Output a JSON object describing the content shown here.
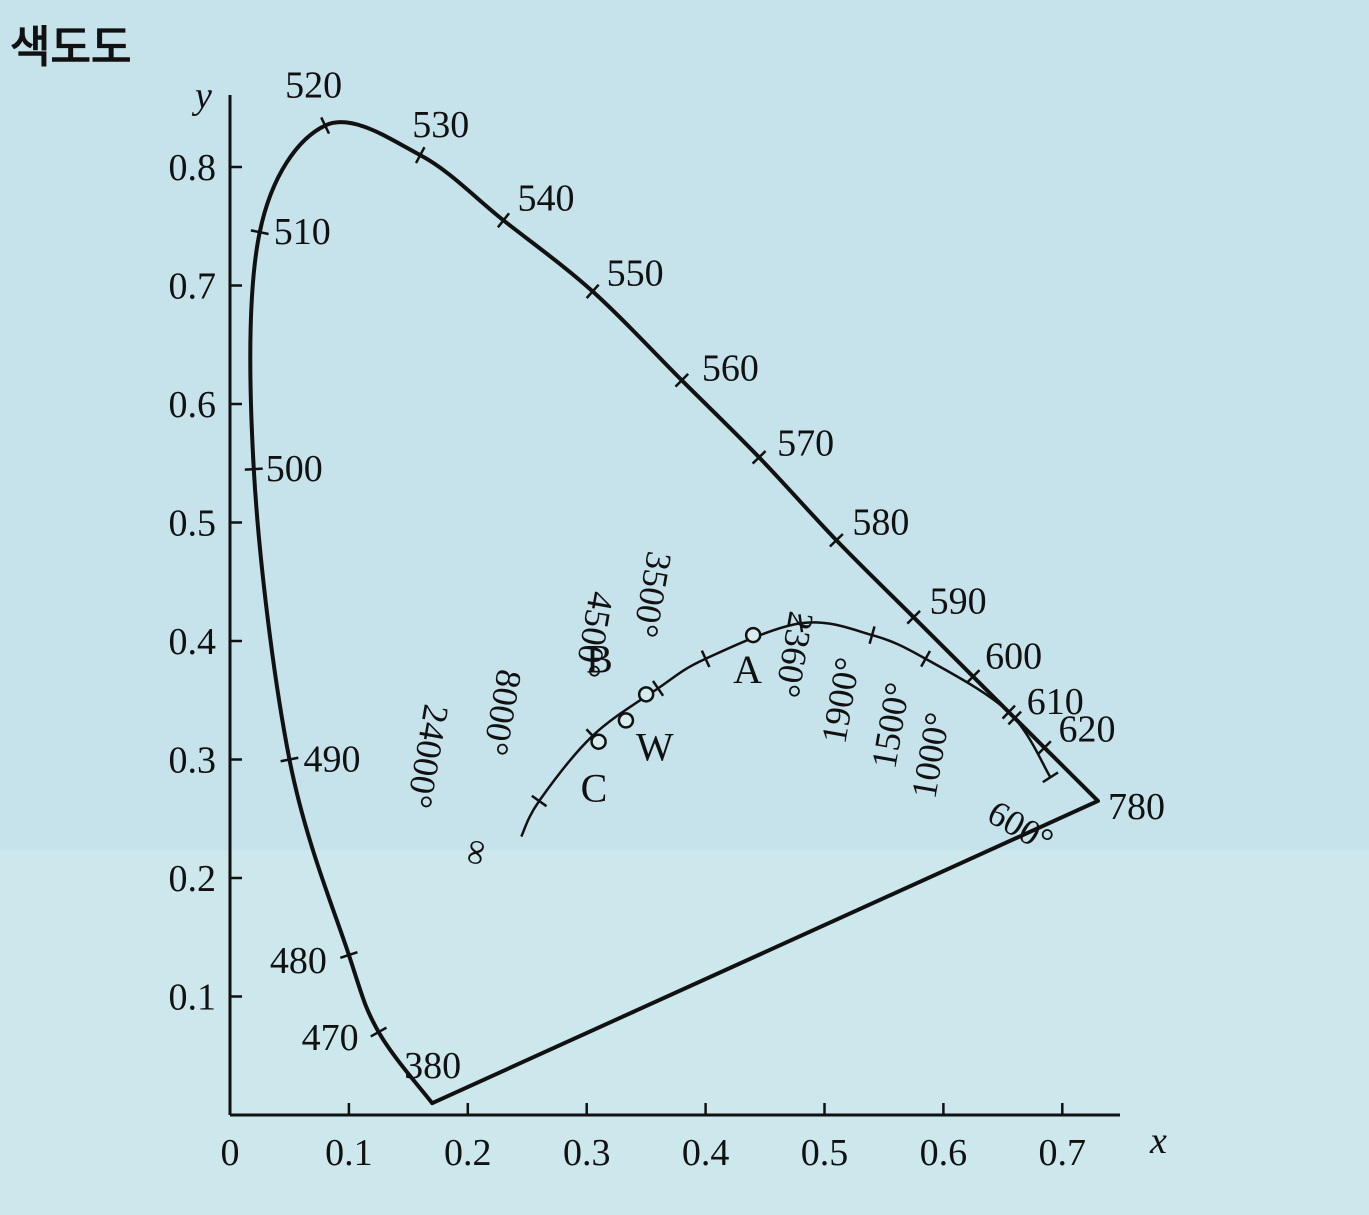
{
  "title": "색도도",
  "axes": {
    "xlabel": "x",
    "ylabel": "y",
    "xticks": [
      "0",
      "0.1",
      "0.2",
      "0.3",
      "0.4",
      "0.5",
      "0.6",
      "0.7"
    ],
    "yticks": [
      "0.1",
      "0.2",
      "0.3",
      "0.4",
      "0.5",
      "0.6",
      "0.7",
      "0.8"
    ],
    "xlim": [
      0,
      0.74
    ],
    "ylim": [
      0,
      0.85
    ]
  },
  "chart_data": {
    "type": "chromaticity-diagram",
    "spectral_locus": [
      {
        "nm": "380",
        "x": 0.17,
        "y": 0.01
      },
      {
        "nm": "470",
        "x": 0.125,
        "y": 0.07
      },
      {
        "nm": "480",
        "x": 0.1,
        "y": 0.135
      },
      {
        "nm": "490",
        "x": 0.05,
        "y": 0.3
      },
      {
        "nm": "500",
        "x": 0.02,
        "y": 0.545
      },
      {
        "nm": "510",
        "x": 0.025,
        "y": 0.745
      },
      {
        "nm": "520",
        "x": 0.08,
        "y": 0.835
      },
      {
        "nm": "530",
        "x": 0.16,
        "y": 0.81
      },
      {
        "nm": "540",
        "x": 0.23,
        "y": 0.755
      },
      {
        "nm": "550",
        "x": 0.305,
        "y": 0.695
      },
      {
        "nm": "560",
        "x": 0.38,
        "y": 0.62
      },
      {
        "nm": "570",
        "x": 0.445,
        "y": 0.555
      },
      {
        "nm": "580",
        "x": 0.51,
        "y": 0.485
      },
      {
        "nm": "590",
        "x": 0.575,
        "y": 0.42
      },
      {
        "nm": "600",
        "x": 0.625,
        "y": 0.37
      },
      {
        "nm": "610",
        "x": 0.66,
        "y": 0.335
      },
      {
        "nm": "620",
        "x": 0.685,
        "y": 0.31
      },
      {
        "nm": "780",
        "x": 0.73,
        "y": 0.265
      }
    ],
    "planckian_locus": {
      "temperatures": [
        {
          "label": "600°",
          "x": 0.69,
          "y": 0.285
        },
        {
          "label": "1000°",
          "x": 0.655,
          "y": 0.34
        },
        {
          "label": "1500°",
          "x": 0.585,
          "y": 0.385
        },
        {
          "label": "1900°",
          "x": 0.54,
          "y": 0.405
        },
        {
          "label": "2360°",
          "x": 0.48,
          "y": 0.415
        },
        {
          "label": "3500°",
          "x": 0.4,
          "y": 0.385
        },
        {
          "label": "4500°",
          "x": 0.36,
          "y": 0.36
        },
        {
          "label": "8000°",
          "x": 0.305,
          "y": 0.32
        },
        {
          "label": "24000°",
          "x": 0.26,
          "y": 0.265
        },
        {
          "label": "∞",
          "x": 0.245,
          "y": 0.235
        }
      ]
    },
    "illuminants": [
      {
        "name": "A",
        "x": 0.44,
        "y": 0.405
      },
      {
        "name": "B",
        "x": 0.35,
        "y": 0.355
      },
      {
        "name": "W",
        "x": 0.333,
        "y": 0.333
      },
      {
        "name": "C",
        "x": 0.31,
        "y": 0.315
      }
    ]
  }
}
